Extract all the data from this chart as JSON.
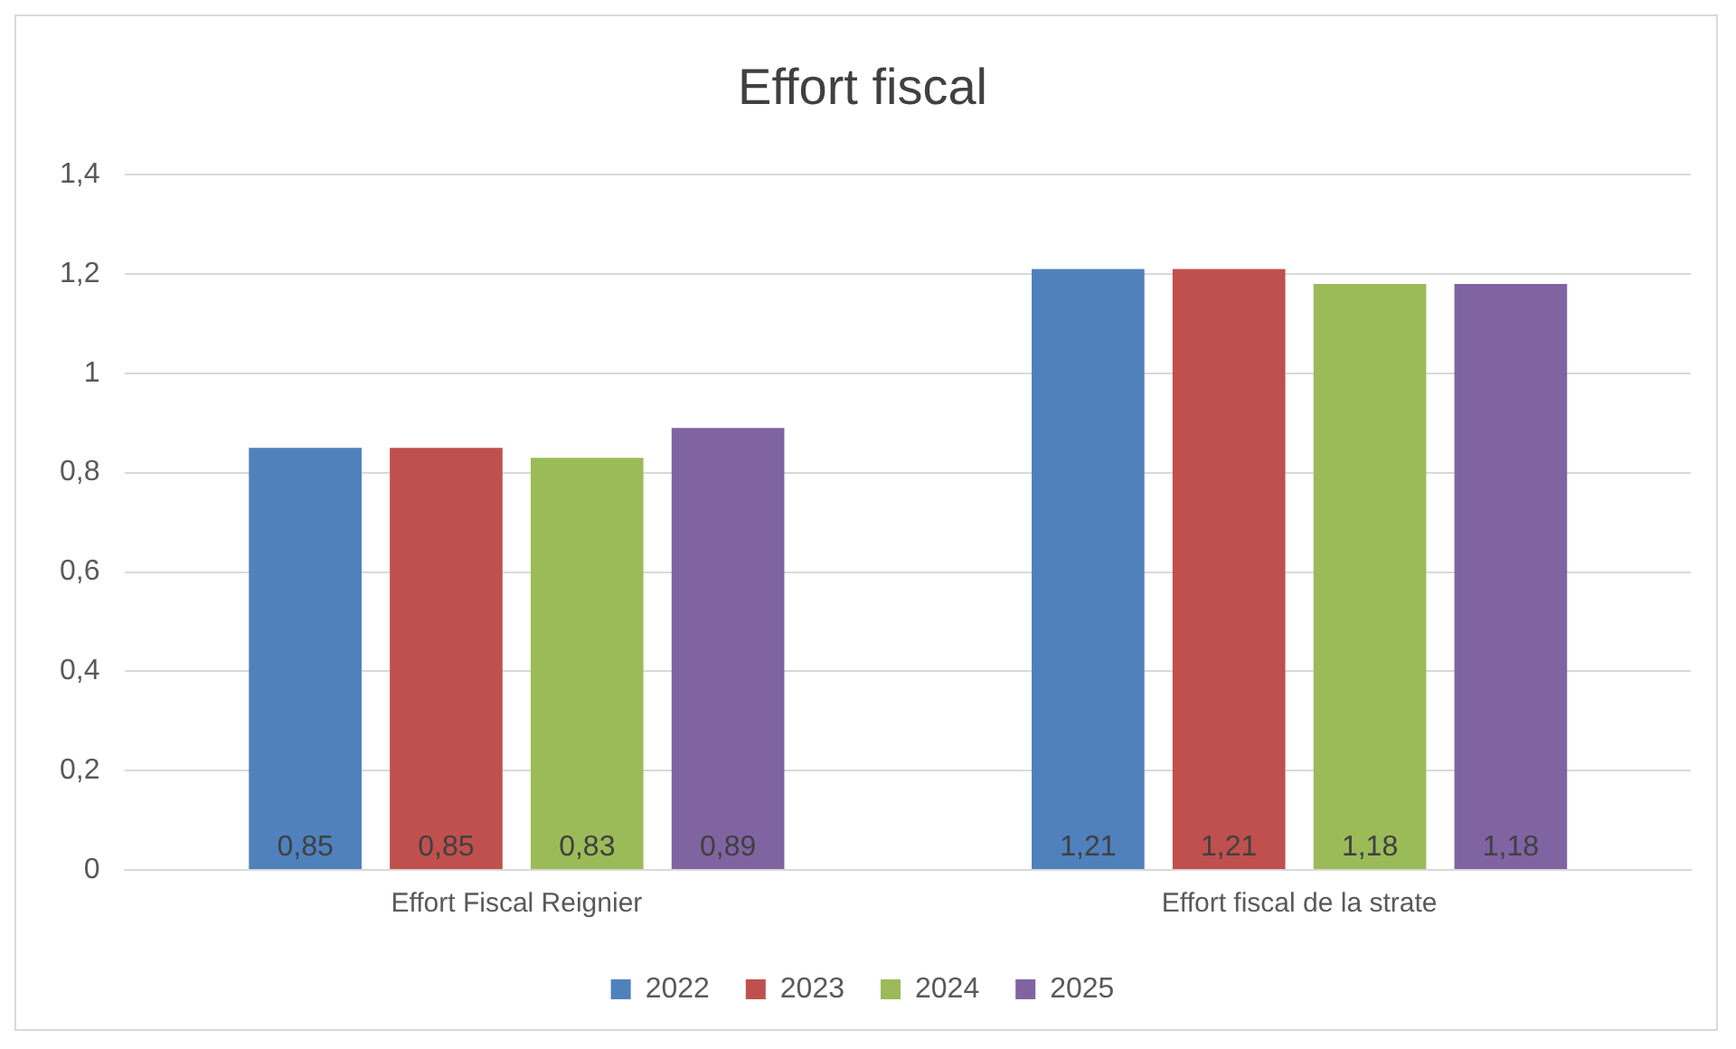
{
  "chart_data": {
    "type": "bar",
    "title": "Effort fiscal",
    "categories": [
      "Effort Fiscal Reignier",
      "Effort fiscal de la strate"
    ],
    "series": [
      {
        "name": "2022",
        "color": "#4f81bd",
        "values": [
          0.85,
          1.21
        ],
        "value_labels": [
          "0,85",
          "1,21"
        ]
      },
      {
        "name": "2023",
        "color": "#c0504d",
        "values": [
          0.85,
          1.21
        ],
        "value_labels": [
          "0,85",
          "1,21"
        ]
      },
      {
        "name": "2024",
        "color": "#9bbb59",
        "values": [
          0.83,
          1.18
        ],
        "value_labels": [
          "0,83",
          "1,18"
        ]
      },
      {
        "name": "2025",
        "color": "#8064a2",
        "values": [
          0.89,
          1.18
        ],
        "value_labels": [
          "0,89",
          "1,18"
        ]
      }
    ],
    "ylim": [
      0,
      1.4
    ],
    "yticks": [
      {
        "value": 0,
        "label": "0"
      },
      {
        "value": 0.2,
        "label": "0,2"
      },
      {
        "value": 0.4,
        "label": "0,4"
      },
      {
        "value": 0.6,
        "label": "0,6"
      },
      {
        "value": 0.8,
        "label": "0,8"
      },
      {
        "value": 1,
        "label": "1"
      },
      {
        "value": 1.2,
        "label": "1,2"
      },
      {
        "value": 1.4,
        "label": "1,4"
      }
    ],
    "grid": "y",
    "legend": "bottom"
  }
}
